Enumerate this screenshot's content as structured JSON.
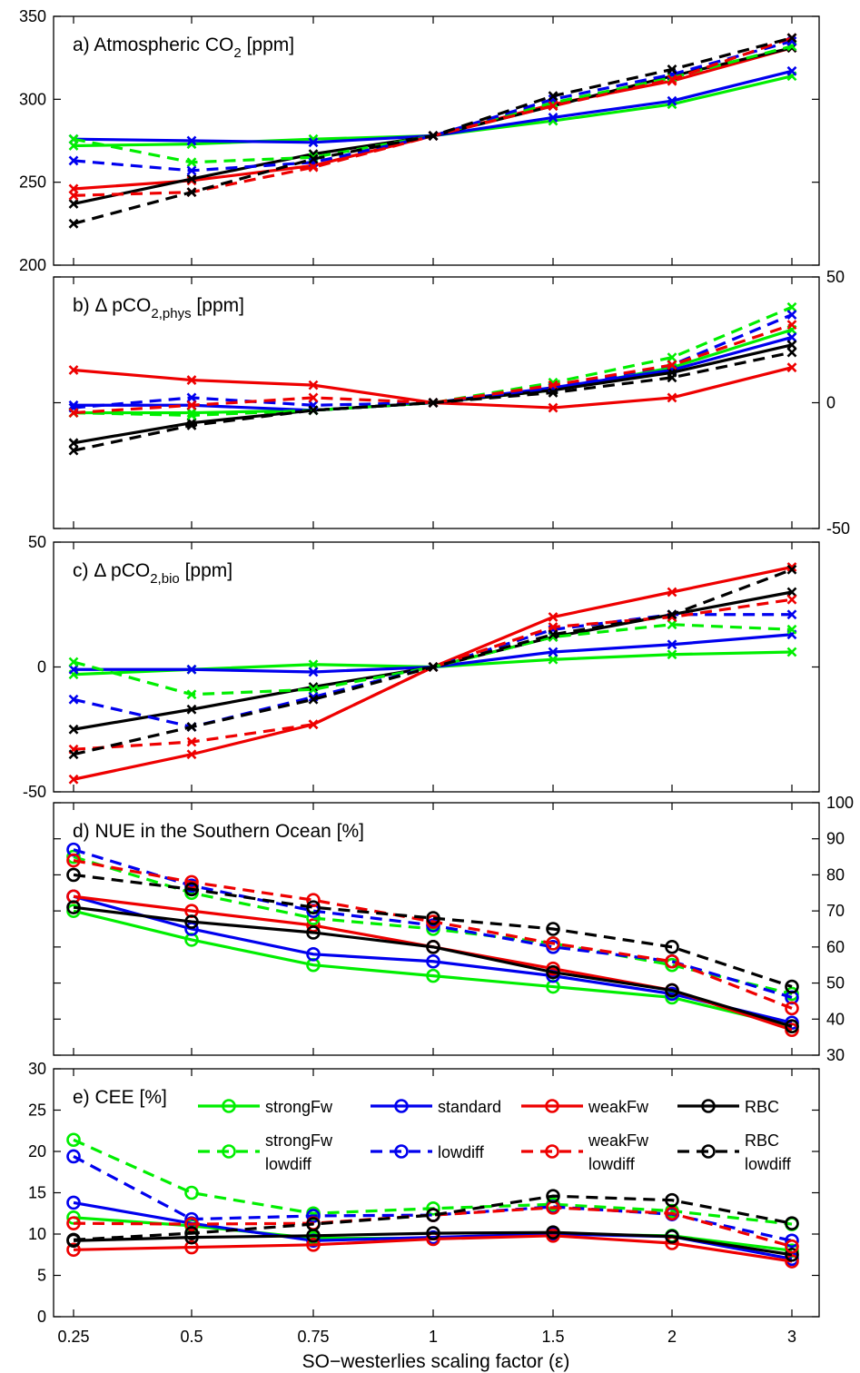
{
  "figure": {
    "xlabel": "SO−westerlies scaling factor (ε)",
    "x_tick_labels": [
      "0.25",
      "0.5",
      "0.75",
      "1",
      "1.5",
      "2",
      "3"
    ]
  },
  "legend": [
    {
      "label": "strongFw",
      "label2": "",
      "color": "#00ee00",
      "dashed": false
    },
    {
      "label": "standard",
      "label2": "",
      "color": "#0000ee",
      "dashed": false
    },
    {
      "label": "weakFw",
      "label2": "",
      "color": "#ee0000",
      "dashed": false
    },
    {
      "label": "RBC",
      "label2": "",
      "color": "#000000",
      "dashed": false
    },
    {
      "label": "strongFw",
      "label2": "lowdiff",
      "color": "#00ee00",
      "dashed": true
    },
    {
      "label": "lowdiff",
      "label2": "",
      "color": "#0000ee",
      "dashed": true
    },
    {
      "label": "weakFw",
      "label2": "lowdiff",
      "color": "#ee0000",
      "dashed": true
    },
    {
      "label": "RBC",
      "label2": "lowdiff",
      "color": "#000000",
      "dashed": true
    }
  ],
  "chart_data": [
    {
      "type": "line",
      "title": "a) Atmospheric CO",
      "title_sub": "2",
      "title_rest": " [ppm]",
      "x": [
        "0.25",
        "0.5",
        "0.75",
        "1",
        "1.5",
        "2",
        "3"
      ],
      "ylim": [
        200,
        350
      ],
      "yticks": [
        200,
        250,
        300,
        350
      ],
      "yaxis_side": "left",
      "marker": "x",
      "series": [
        {
          "style": "strongFw",
          "values": [
            272,
            273,
            276,
            278,
            287,
            297,
            314
          ]
        },
        {
          "style": "standard",
          "values": [
            276,
            275,
            274,
            278,
            289,
            299,
            317
          ]
        },
        {
          "style": "weakFw",
          "values": [
            246,
            251,
            260,
            278,
            297,
            311,
            331
          ]
        },
        {
          "style": "RBC",
          "values": [
            237,
            252,
            267,
            278,
            296,
            314,
            331
          ]
        },
        {
          "style": "strongFw lowdiff",
          "values": [
            276,
            262,
            265,
            278,
            298,
            313,
            332
          ]
        },
        {
          "style": "lowdiff",
          "values": [
            263,
            257,
            262,
            278,
            300,
            315,
            335
          ]
        },
        {
          "style": "weakFw lowdiff",
          "values": [
            242,
            244,
            259,
            278,
            296,
            312,
            337
          ]
        },
        {
          "style": "RBC lowdiff",
          "values": [
            225,
            244,
            264,
            278,
            302,
            318,
            337
          ]
        }
      ]
    },
    {
      "type": "line",
      "title": "b) Δ pCO",
      "title_sub": "2,phys",
      "title_rest": " [ppm]",
      "x": [
        "0.25",
        "0.5",
        "0.75",
        "1",
        "1.5",
        "2",
        "3"
      ],
      "ylim": [
        -50,
        50
      ],
      "yticks": [
        -50,
        0,
        50
      ],
      "yaxis_side": "right",
      "marker": "x",
      "series": [
        {
          "style": "strongFw",
          "values": [
            -4,
            -4,
            -3,
            0,
            5,
            14,
            29
          ]
        },
        {
          "style": "standard",
          "values": [
            -1,
            -1,
            -3,
            0,
            6,
            13,
            26
          ]
        },
        {
          "style": "weakFw",
          "values": [
            13,
            9,
            7,
            0,
            -2,
            2,
            14
          ]
        },
        {
          "style": "RBC",
          "values": [
            -16,
            -8,
            -3,
            0,
            5,
            12,
            23
          ]
        },
        {
          "style": "strongFw lowdiff",
          "values": [
            -4,
            -5,
            -3,
            0,
            8,
            18,
            38
          ]
        },
        {
          "style": "lowdiff",
          "values": [
            -2,
            2,
            -1,
            0,
            6,
            15,
            35
          ]
        },
        {
          "style": "weakFw lowdiff",
          "values": [
            -4,
            -1,
            2,
            0,
            7,
            15,
            31
          ]
        },
        {
          "style": "RBC lowdiff",
          "values": [
            -19,
            -9,
            -3,
            0,
            4,
            10,
            20
          ]
        }
      ]
    },
    {
      "type": "line",
      "title": "c) Δ pCO",
      "title_sub": "2,bio",
      "title_rest": " [ppm]",
      "x": [
        "0.25",
        "0.5",
        "0.75",
        "1",
        "1.5",
        "2",
        "3"
      ],
      "ylim": [
        -50,
        50
      ],
      "yticks": [
        -50,
        0,
        50
      ],
      "yaxis_side": "left",
      "marker": "x",
      "series": [
        {
          "style": "strongFw",
          "values": [
            -3,
            -1,
            1,
            0,
            3,
            5,
            6
          ]
        },
        {
          "style": "standard",
          "values": [
            -1,
            -1,
            -2,
            0,
            6,
            9,
            13
          ]
        },
        {
          "style": "weakFw",
          "values": [
            -45,
            -35,
            -23,
            0,
            20,
            30,
            40
          ]
        },
        {
          "style": "RBC",
          "values": [
            -25,
            -17,
            -8,
            0,
            12,
            21,
            30
          ]
        },
        {
          "style": "strongFw lowdiff",
          "values": [
            2,
            -11,
            -9,
            0,
            12,
            17,
            15
          ]
        },
        {
          "style": "lowdiff",
          "values": [
            -13,
            -24,
            -12,
            0,
            15,
            21,
            21
          ]
        },
        {
          "style": "weakFw lowdiff",
          "values": [
            -33,
            -30,
            -23,
            0,
            16,
            20,
            27
          ]
        },
        {
          "style": "RBC lowdiff",
          "values": [
            -35,
            -24,
            -13,
            0,
            13,
            21,
            39
          ]
        }
      ]
    },
    {
      "type": "line",
      "title": "d) NUE in the Southern Ocean [%]",
      "title_sub": "",
      "title_rest": "",
      "x": [
        "0.25",
        "0.5",
        "0.75",
        "1",
        "1.5",
        "2",
        "3"
      ],
      "ylim": [
        30,
        100
      ],
      "yticks": [
        30,
        40,
        50,
        60,
        70,
        80,
        90,
        100
      ],
      "yaxis_side": "right",
      "marker": "o",
      "series": [
        {
          "style": "strongFw",
          "values": [
            70,
            62,
            55,
            52,
            49,
            46,
            38
          ]
        },
        {
          "style": "standard",
          "values": [
            74,
            65,
            58,
            56,
            52,
            47,
            39
          ]
        },
        {
          "style": "weakFw",
          "values": [
            74,
            70,
            66,
            60,
            54,
            48,
            37
          ]
        },
        {
          "style": "RBC",
          "values": [
            71,
            67,
            64,
            60,
            53,
            48,
            38
          ]
        },
        {
          "style": "strongFw lowdiff",
          "values": [
            85,
            75,
            68,
            65,
            61,
            55,
            47
          ]
        },
        {
          "style": "lowdiff",
          "values": [
            87,
            77,
            70,
            66,
            60,
            56,
            46
          ]
        },
        {
          "style": "weakFw lowdiff",
          "values": [
            84,
            78,
            73,
            67,
            61,
            56,
            43
          ]
        },
        {
          "style": "RBC lowdiff",
          "values": [
            80,
            76,
            71,
            68,
            65,
            60,
            49
          ]
        }
      ]
    },
    {
      "type": "line",
      "title": "e) CEE [%]",
      "title_sub": "",
      "title_rest": "",
      "x": [
        "0.25",
        "0.5",
        "0.75",
        "1",
        "1.5",
        "2",
        "3"
      ],
      "ylim": [
        0,
        30
      ],
      "yticks": [
        0,
        5,
        10,
        15,
        20,
        25,
        30
      ],
      "yaxis_side": "left",
      "marker": "o",
      "series": [
        {
          "style": "strongFw",
          "values": [
            12.0,
            11.0,
            9.5,
            9.5,
            10.0,
            9.8,
            8.0
          ]
        },
        {
          "style": "standard",
          "values": [
            13.8,
            11.3,
            9.2,
            9.6,
            10.0,
            9.7,
            7.0
          ]
        },
        {
          "style": "weakFw",
          "values": [
            8.1,
            8.4,
            8.7,
            9.4,
            9.8,
            8.9,
            6.7
          ]
        },
        {
          "style": "RBC",
          "values": [
            9.2,
            9.6,
            9.8,
            10.1,
            10.2,
            9.7,
            7.5
          ]
        },
        {
          "style": "strongFw lowdiff",
          "values": [
            21.4,
            15.0,
            12.5,
            13.1,
            13.6,
            12.8,
            11.2
          ]
        },
        {
          "style": "lowdiff",
          "values": [
            19.4,
            11.8,
            12.2,
            12.3,
            13.3,
            12.4,
            9.2
          ]
        },
        {
          "style": "weakFw lowdiff",
          "values": [
            11.3,
            11.2,
            11.3,
            12.3,
            13.2,
            12.5,
            8.5
          ]
        },
        {
          "style": "RBC lowdiff",
          "values": [
            9.3,
            10.1,
            11.2,
            12.3,
            14.6,
            14.1,
            11.3
          ]
        }
      ]
    }
  ]
}
